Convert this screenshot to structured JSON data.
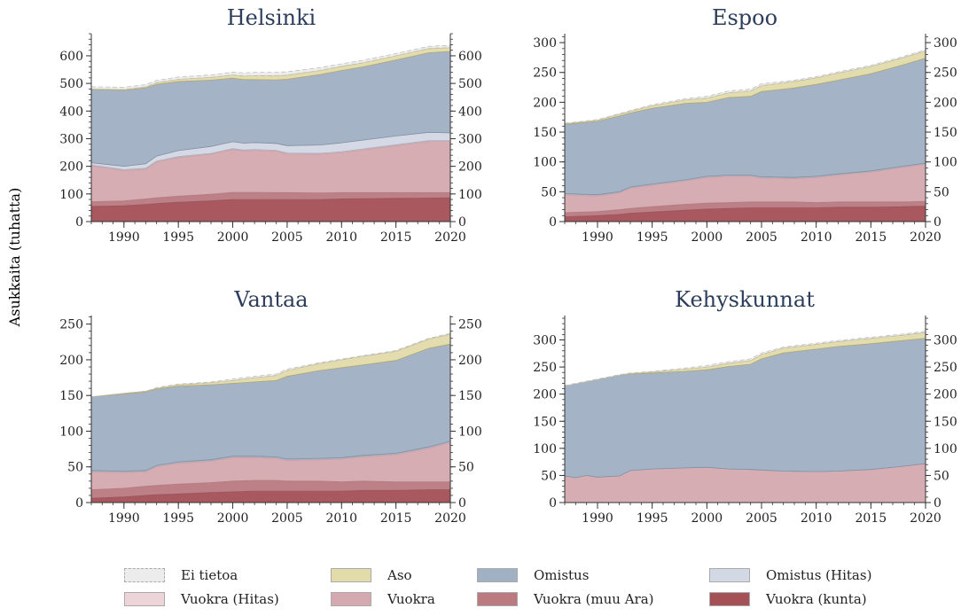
{
  "ylabel": "Asukkaita (tuhatta)",
  "categories_legend": [
    {
      "name": "Ei tietoa",
      "color": "#ececec"
    },
    {
      "name": "Aso",
      "color": "#e2dbaa"
    },
    {
      "name": "Omistus",
      "color": "#a0b1c3"
    },
    {
      "name": "Omistus (Hitas)",
      "color": "#d2d8e4"
    },
    {
      "name": "Vuokra (Hitas)",
      "color": "#ecd4d8"
    },
    {
      "name": "Vuokra",
      "color": "#d4a9af"
    },
    {
      "name": "Vuokra (muu Ara)",
      "color": "#ba7a80"
    },
    {
      "name": "Vuokra (kunta)",
      "color": "#a55057"
    }
  ],
  "chart_data": [
    {
      "type": "area",
      "title": "Helsinki",
      "stacked": true,
      "ylim": [
        0,
        680
      ],
      "yticks": [
        0,
        100,
        200,
        300,
        400,
        500,
        600
      ],
      "xlim": [
        1987,
        2020
      ],
      "xticks": [
        1990,
        1995,
        2000,
        2005,
        2010,
        2015,
        2020
      ],
      "x": [
        1987,
        1990,
        1992,
        1993,
        1995,
        1998,
        2000,
        2001,
        2002,
        2004,
        2005,
        2008,
        2010,
        2012,
        2015,
        2018,
        2020
      ],
      "series": [
        {
          "name": "Vuokra (kunta)",
          "values": [
            55,
            57,
            62,
            65,
            70,
            75,
            80,
            80,
            80,
            80,
            80,
            80,
            82,
            83,
            84,
            85,
            86
          ]
        },
        {
          "name": "Vuokra (muu Ara)",
          "values": [
            17,
            18,
            20,
            21,
            22,
            24,
            26,
            26,
            26,
            25,
            25,
            24,
            23,
            22,
            21,
            20,
            19
          ]
        },
        {
          "name": "Vuokra",
          "values": [
            130,
            110,
            108,
            130,
            140,
            145,
            155,
            150,
            152,
            150,
            140,
            140,
            145,
            155,
            170,
            185,
            185
          ]
        },
        {
          "name": "Vuokra (Hitas)",
          "values": [
            3,
            3,
            3,
            3,
            3,
            3,
            3,
            3,
            3,
            3,
            3,
            3,
            3,
            3,
            3,
            3,
            3
          ]
        },
        {
          "name": "Omistus (Hitas)",
          "values": [
            8,
            12,
            16,
            18,
            22,
            25,
            25,
            25,
            25,
            25,
            27,
            30,
            32,
            32,
            32,
            30,
            28
          ]
        },
        {
          "name": "Omistus",
          "values": [
            265,
            275,
            275,
            260,
            250,
            240,
            230,
            230,
            228,
            230,
            240,
            255,
            262,
            265,
            275,
            288,
            295
          ]
        },
        {
          "name": "Aso",
          "values": [
            2,
            3,
            4,
            6,
            8,
            10,
            12,
            13,
            14,
            15,
            15,
            15,
            15,
            15,
            15,
            15,
            14
          ]
        },
        {
          "name": "Ei tietoa",
          "values": [
            8,
            8,
            8,
            8,
            8,
            9,
            10,
            11,
            12,
            12,
            12,
            10,
            9,
            9,
            8,
            8,
            8
          ]
        }
      ]
    },
    {
      "type": "area",
      "title": "Espoo",
      "stacked": true,
      "ylim": [
        0,
        315
      ],
      "yticks": [
        0,
        50,
        100,
        150,
        200,
        250,
        300
      ],
      "xlim": [
        1987,
        2020
      ],
      "xticks": [
        1990,
        1995,
        2000,
        2005,
        2010,
        2015,
        2020
      ],
      "x": [
        1987,
        1990,
        1992,
        1993,
        1995,
        1998,
        2000,
        2002,
        2004,
        2005,
        2008,
        2010,
        2012,
        2015,
        2018,
        2020
      ],
      "series": [
        {
          "name": "Vuokra (kunta)",
          "values": [
            8,
            10,
            12,
            14,
            16,
            19,
            21,
            22,
            23,
            23,
            23,
            23,
            24,
            24,
            25,
            26
          ]
        },
        {
          "name": "Vuokra (muu Ara)",
          "values": [
            7,
            7,
            8,
            8,
            9,
            10,
            10,
            10,
            10,
            10,
            10,
            9,
            9,
            9,
            8,
            8
          ]
        },
        {
          "name": "Vuokra",
          "values": [
            30,
            26,
            28,
            34,
            36,
            39,
            43,
            44,
            43,
            40,
            39,
            42,
            45,
            50,
            58,
            62
          ]
        },
        {
          "name": "Vuokra (Hitas)",
          "values": [
            1,
            1,
            1,
            1,
            1,
            1,
            1,
            1,
            1,
            1,
            1,
            1,
            1,
            1,
            1,
            1
          ]
        },
        {
          "name": "Omistus (Hitas)",
          "values": [
            1,
            1,
            1,
            1,
            1,
            1,
            1,
            1,
            1,
            1,
            1,
            1,
            1,
            1,
            1,
            1
          ]
        },
        {
          "name": "Omistus",
          "values": [
            116,
            123,
            127,
            124,
            127,
            128,
            124,
            130,
            132,
            143,
            150,
            154,
            157,
            163,
            170,
            176
          ]
        },
        {
          "name": "Aso",
          "values": [
            1,
            2,
            3,
            3,
            4,
            6,
            7,
            8,
            9,
            10,
            11,
            11,
            12,
            12,
            12,
            12
          ]
        },
        {
          "name": "Ei tietoa",
          "values": [
            1,
            1,
            1,
            1,
            2,
            2,
            3,
            3,
            3,
            3,
            2,
            2,
            2,
            2,
            2,
            2
          ]
        }
      ]
    },
    {
      "type": "area",
      "title": "Vantaa",
      "stacked": true,
      "ylim": [
        0,
        262
      ],
      "yticks": [
        0,
        50,
        100,
        150,
        200,
        250
      ],
      "xlim": [
        1987,
        2020
      ],
      "xticks": [
        1990,
        1995,
        2000,
        2005,
        2010,
        2015,
        2020
      ],
      "x": [
        1987,
        1990,
        1992,
        1993,
        1995,
        1998,
        2000,
        2002,
        2004,
        2005,
        2008,
        2010,
        2012,
        2015,
        2018,
        2020
      ],
      "series": [
        {
          "name": "Vuokra (kunta)",
          "values": [
            6,
            8,
            10,
            11,
            12,
            14,
            15,
            16,
            16,
            16,
            16,
            16,
            17,
            17,
            18,
            18
          ]
        },
        {
          "name": "Vuokra (muu Ara)",
          "values": [
            12,
            12,
            13,
            13,
            14,
            14,
            15,
            15,
            15,
            14,
            14,
            13,
            13,
            12,
            11,
            11
          ]
        },
        {
          "name": "Vuokra",
          "values": [
            25,
            22,
            20,
            26,
            29,
            30,
            33,
            32,
            31,
            29,
            30,
            32,
            34,
            38,
            47,
            55
          ]
        },
        {
          "name": "Vuokra (Hitas)",
          "values": [
            1,
            1,
            1,
            1,
            1,
            1,
            1,
            1,
            1,
            1,
            1,
            1,
            1,
            1,
            1,
            1
          ]
        },
        {
          "name": "Omistus (Hitas)",
          "values": [
            1,
            1,
            1,
            1,
            1,
            1,
            1,
            1,
            1,
            1,
            1,
            1,
            1,
            1,
            1,
            1
          ]
        },
        {
          "name": "Omistus",
          "values": [
            103,
            108,
            110,
            107,
            106,
            105,
            102,
            104,
            107,
            116,
            123,
            126,
            127,
            130,
            138,
            136
          ]
        },
        {
          "name": "Aso",
          "values": [
            0,
            1,
            1,
            1,
            2,
            3,
            4,
            6,
            7,
            8,
            10,
            11,
            12,
            13,
            13,
            14
          ]
        },
        {
          "name": "Ei tietoa",
          "values": [
            0,
            0,
            0,
            1,
            1,
            1,
            2,
            2,
            2,
            2,
            1,
            1,
            1,
            1,
            1,
            1
          ]
        }
      ]
    },
    {
      "type": "area",
      "title": "Kehyskunnat",
      "stacked": true,
      "ylim": [
        0,
        345
      ],
      "yticks": [
        0,
        50,
        100,
        150,
        200,
        250,
        300
      ],
      "xlim": [
        1987,
        2020
      ],
      "xticks": [
        1990,
        1995,
        2000,
        2005,
        2010,
        2015,
        2020
      ],
      "x": [
        1987,
        1988,
        1989,
        1990,
        1992,
        1993,
        1995,
        1998,
        2000,
        2002,
        2004,
        2005,
        2007,
        2010,
        2012,
        2015,
        2018,
        2020
      ],
      "series": [
        {
          "name": "Vuokra (kunta)",
          "values": [
            0,
            0,
            0,
            0,
            0,
            0,
            0,
            0,
            0,
            0,
            0,
            0,
            0,
            0,
            0,
            0,
            0,
            0
          ]
        },
        {
          "name": "Vuokra (muu Ara)",
          "values": [
            0,
            0,
            0,
            0,
            0,
            0,
            0,
            0,
            0,
            0,
            0,
            0,
            0,
            0,
            0,
            0,
            0,
            0
          ]
        },
        {
          "name": "Vuokra",
          "values": [
            49,
            46,
            50,
            47,
            49,
            59,
            62,
            64,
            65,
            62,
            61,
            60,
            58,
            57,
            58,
            61,
            67,
            72
          ]
        },
        {
          "name": "Vuokra (Hitas)",
          "values": [
            0,
            0,
            0,
            0,
            0,
            0,
            0,
            0,
            0,
            0,
            0,
            0,
            0,
            0,
            0,
            0,
            0,
            0
          ]
        },
        {
          "name": "Omistus (Hitas)",
          "values": [
            0,
            0,
            0,
            0,
            0,
            0,
            0,
            0,
            0,
            0,
            0,
            0,
            0,
            0,
            0,
            0,
            0,
            0
          ]
        },
        {
          "name": "Omistus",
          "values": [
            166,
            173,
            173,
            180,
            186,
            178,
            177,
            178,
            180,
            189,
            194,
            205,
            218,
            226,
            230,
            232,
            232,
            231
          ]
        },
        {
          "name": "Aso",
          "values": [
            0,
            0,
            0,
            0,
            0,
            1,
            2,
            4,
            5,
            6,
            7,
            8,
            9,
            9,
            9,
            10,
            10,
            11
          ]
        },
        {
          "name": "Ei tietoa",
          "values": [
            1,
            1,
            1,
            1,
            1,
            1,
            1,
            2,
            3,
            3,
            3,
            3,
            2,
            2,
            2,
            2,
            2,
            2
          ]
        }
      ]
    }
  ]
}
